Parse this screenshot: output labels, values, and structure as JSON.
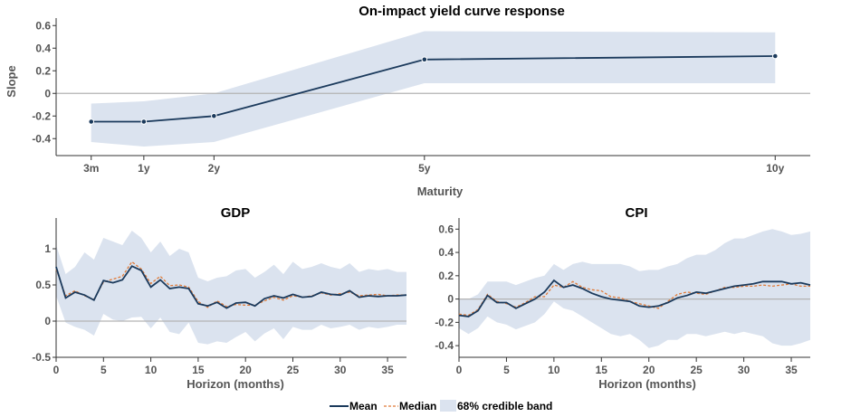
{
  "legend": {
    "mean_label": "Mean",
    "median_label": "Median",
    "band_label": "68% credible band"
  },
  "colors": {
    "mean": "#1b3a5c",
    "median": "#e07b39",
    "band": "#dbe3ef",
    "zero_line": "#b3b3b3",
    "axis": "#333333"
  },
  "chart_data": [
    {
      "type": "line",
      "title": "On-impact yield curve response",
      "xlabel": "Maturity",
      "ylabel": "Slope",
      "categories": [
        "3m",
        "1y",
        "2y",
        "5y",
        "10y"
      ],
      "x": [
        0.25,
        1,
        2,
        5,
        10
      ],
      "xlim": [
        -0.25,
        10.5
      ],
      "ylim": [
        -0.55,
        0.65
      ],
      "yticks": [
        -0.4,
        -0.2,
        0,
        0.2,
        0.4,
        0.6
      ],
      "ytick_labels": [
        "-0.4",
        "-0.2",
        "0",
        "0.2",
        "0.4",
        "0.6"
      ],
      "series": [
        {
          "name": "Mean",
          "values": [
            -0.25,
            -0.25,
            -0.2,
            0.3,
            0.33
          ]
        }
      ],
      "band_lower": [
        -0.43,
        -0.47,
        -0.43,
        0.09,
        0.09
      ],
      "band_upper": [
        -0.09,
        -0.07,
        0.0,
        0.55,
        0.54
      ],
      "markers": true,
      "grid": false
    },
    {
      "type": "line",
      "title": "GDP",
      "xlabel": "Horizon (months)",
      "ylabel": "",
      "x": [
        0,
        1,
        2,
        3,
        4,
        5,
        6,
        7,
        8,
        9,
        10,
        11,
        12,
        13,
        14,
        15,
        16,
        17,
        18,
        19,
        20,
        21,
        22,
        23,
        24,
        25,
        26,
        27,
        28,
        29,
        30,
        31,
        32,
        33,
        34,
        35,
        36,
        37
      ],
      "xlim": [
        0,
        37
      ],
      "xticks": [
        0,
        5,
        10,
        15,
        20,
        25,
        30,
        35
      ],
      "xtick_labels": [
        "0",
        "5",
        "10",
        "15",
        "20",
        "25",
        "30",
        "35"
      ],
      "ylim": [
        -0.5,
        1.4
      ],
      "yticks": [
        -0.5,
        0,
        0.5,
        1
      ],
      "ytick_labels": [
        "-0.5",
        "0",
        "0.5",
        "1"
      ],
      "series": [
        {
          "name": "Mean",
          "values": [
            0.75,
            0.32,
            0.4,
            0.36,
            0.29,
            0.56,
            0.53,
            0.57,
            0.76,
            0.7,
            0.47,
            0.57,
            0.45,
            0.47,
            0.45,
            0.24,
            0.21,
            0.26,
            0.18,
            0.25,
            0.26,
            0.21,
            0.31,
            0.35,
            0.32,
            0.37,
            0.33,
            0.34,
            0.4,
            0.37,
            0.36,
            0.42,
            0.33,
            0.35,
            0.34,
            0.35,
            0.35,
            0.36
          ]
        },
        {
          "name": "Median",
          "values": [
            0.72,
            0.35,
            0.42,
            0.35,
            0.3,
            0.54,
            0.58,
            0.62,
            0.82,
            0.72,
            0.52,
            0.62,
            0.49,
            0.5,
            0.47,
            0.27,
            0.19,
            0.28,
            0.2,
            0.23,
            0.22,
            0.22,
            0.28,
            0.33,
            0.29,
            0.35,
            0.33,
            0.35,
            0.39,
            0.36,
            0.38,
            0.4,
            0.35,
            0.36,
            0.37,
            0.35,
            0.36,
            0.36
          ]
        }
      ],
      "band_lower": [
        0.35,
        -0.02,
        -0.08,
        -0.12,
        -0.2,
        0.1,
        0.02,
        0.0,
        0.05,
        0.06,
        -0.1,
        0.05,
        -0.15,
        -0.18,
        -0.02,
        -0.3,
        -0.32,
        -0.28,
        -0.3,
        -0.22,
        -0.15,
        -0.28,
        -0.17,
        -0.1,
        -0.25,
        -0.08,
        -0.12,
        -0.12,
        -0.05,
        -0.1,
        -0.08,
        -0.05,
        -0.12,
        -0.08,
        -0.1,
        -0.08,
        -0.05,
        -0.05
      ],
      "band_upper": [
        1.05,
        0.65,
        0.75,
        0.95,
        0.85,
        1.15,
        1.1,
        1.05,
        1.25,
        1.15,
        0.95,
        1.1,
        0.9,
        1.0,
        0.95,
        0.6,
        0.55,
        0.6,
        0.62,
        0.7,
        0.72,
        0.6,
        0.68,
        0.78,
        0.65,
        0.82,
        0.72,
        0.75,
        0.8,
        0.75,
        0.72,
        0.8,
        0.68,
        0.72,
        0.7,
        0.72,
        0.68,
        0.68
      ],
      "grid": false
    },
    {
      "type": "line",
      "title": "CPI",
      "xlabel": "Horizon (months)",
      "ylabel": "",
      "x": [
        0,
        1,
        2,
        3,
        4,
        5,
        6,
        7,
        8,
        9,
        10,
        11,
        12,
        13,
        14,
        15,
        16,
        17,
        18,
        19,
        20,
        21,
        22,
        23,
        24,
        25,
        26,
        27,
        28,
        29,
        30,
        31,
        32,
        33,
        34,
        35,
        36,
        37
      ],
      "xlim": [
        0,
        37
      ],
      "xticks": [
        0,
        5,
        10,
        15,
        20,
        25,
        30,
        35
      ],
      "xtick_labels": [
        "0",
        "5",
        "10",
        "15",
        "20",
        "25",
        "30",
        "35"
      ],
      "ylim": [
        -0.5,
        0.68
      ],
      "yticks": [
        -0.4,
        -0.2,
        0,
        0.2,
        0.4,
        0.6
      ],
      "ytick_labels": [
        "-0.4",
        "-0.2",
        "0",
        "0.2",
        "0.4",
        "0.6"
      ],
      "series": [
        {
          "name": "Mean",
          "values": [
            -0.14,
            -0.15,
            -0.1,
            0.03,
            -0.03,
            -0.03,
            -0.08,
            -0.04,
            0.0,
            0.06,
            0.16,
            0.1,
            0.12,
            0.09,
            0.05,
            0.02,
            0.0,
            -0.01,
            -0.02,
            -0.06,
            -0.07,
            -0.06,
            -0.03,
            0.01,
            0.03,
            0.06,
            0.05,
            0.07,
            0.09,
            0.11,
            0.12,
            0.13,
            0.15,
            0.15,
            0.15,
            0.13,
            0.14,
            0.12
          ]
        },
        {
          "name": "Median",
          "values": [
            -0.13,
            -0.14,
            -0.09,
            0.04,
            -0.02,
            -0.04,
            -0.07,
            -0.03,
            0.02,
            0.02,
            0.12,
            0.1,
            0.15,
            0.1,
            0.08,
            0.07,
            0.02,
            0.01,
            -0.02,
            -0.04,
            -0.06,
            -0.08,
            -0.02,
            0.04,
            0.06,
            0.05,
            0.04,
            0.07,
            0.1,
            0.1,
            0.11,
            0.11,
            0.12,
            0.11,
            0.12,
            0.13,
            0.11,
            0.11
          ]
        }
      ],
      "band_lower": [
        -0.25,
        -0.3,
        -0.25,
        -0.15,
        -0.2,
        -0.22,
        -0.26,
        -0.23,
        -0.2,
        -0.13,
        -0.02,
        -0.08,
        -0.1,
        -0.15,
        -0.2,
        -0.25,
        -0.3,
        -0.32,
        -0.3,
        -0.35,
        -0.42,
        -0.4,
        -0.35,
        -0.35,
        -0.3,
        -0.3,
        -0.32,
        -0.3,
        -0.28,
        -0.3,
        -0.28,
        -0.3,
        -0.32,
        -0.38,
        -0.4,
        -0.4,
        -0.38,
        -0.35
      ],
      "band_upper": [
        0.0,
        0.0,
        0.04,
        0.15,
        0.15,
        0.15,
        0.12,
        0.15,
        0.18,
        0.2,
        0.3,
        0.25,
        0.3,
        0.32,
        0.3,
        0.3,
        0.3,
        0.3,
        0.28,
        0.24,
        0.25,
        0.25,
        0.28,
        0.3,
        0.35,
        0.38,
        0.38,
        0.42,
        0.48,
        0.52,
        0.52,
        0.55,
        0.58,
        0.6,
        0.58,
        0.55,
        0.56,
        0.58
      ],
      "grid": false
    }
  ]
}
